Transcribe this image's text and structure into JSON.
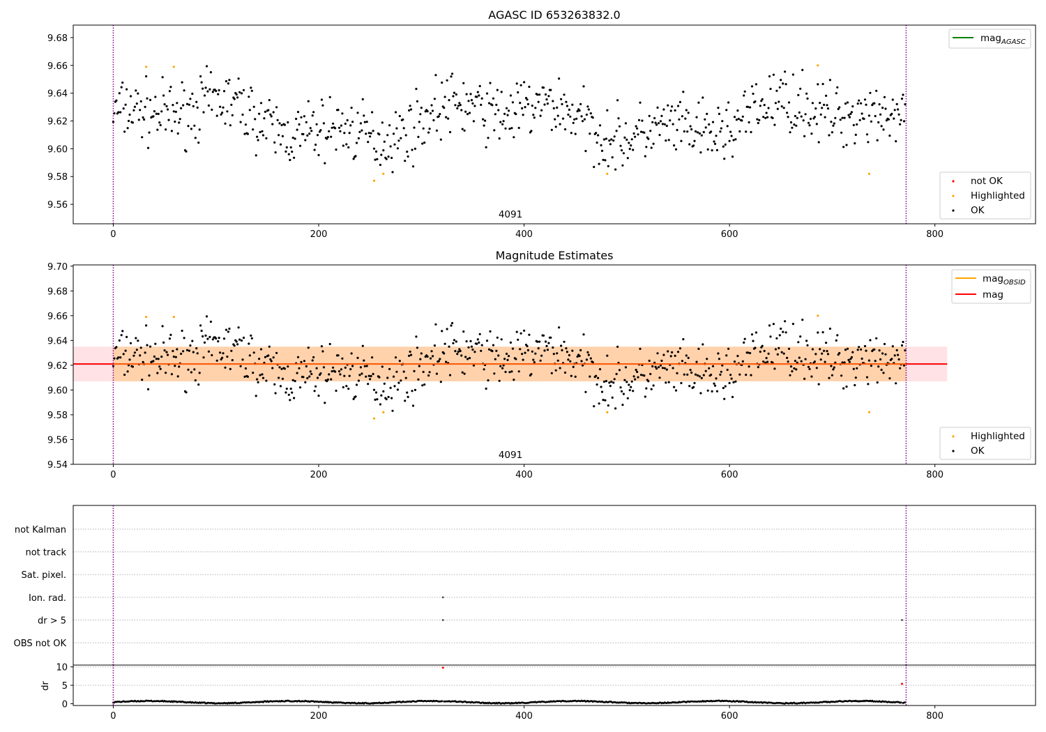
{
  "chart_data": [
    {
      "type": "scatter",
      "title": "AGASC ID 653263832.0",
      "xlim": [
        -39,
        898
      ],
      "ylim": [
        9.546,
        9.689
      ],
      "xticks": [
        0,
        200,
        400,
        600,
        800
      ],
      "yticks": [
        9.56,
        9.58,
        9.6,
        9.62,
        9.64,
        9.66,
        9.68
      ],
      "vlines": [
        0,
        772
      ],
      "annotation": {
        "text": "4091",
        "x": 386,
        "y": 9.55
      },
      "legend_lines": [
        {
          "name": "mag",
          "subscript": "AGASC",
          "color": "#008000"
        }
      ],
      "legend_markers": [
        {
          "name": "not OK",
          "color": "#ff0000"
        },
        {
          "name": "Highlighted",
          "color": "#ffa500"
        },
        {
          "name": "OK",
          "color": "#000000"
        }
      ],
      "highlighted": {
        "x": [
          32,
          59,
          254,
          263,
          481,
          686,
          736
        ],
        "y": [
          9.659,
          9.659,
          9.577,
          9.582,
          9.582,
          9.66,
          9.582
        ]
      },
      "series": [
        {
          "name": "OK",
          "color": "#000000",
          "x": [],
          "y": []
        }
      ]
    },
    {
      "type": "scatter",
      "title": "Magnitude Estimates",
      "xlim": [
        -39,
        898
      ],
      "ylim": [
        9.54,
        9.701
      ],
      "xticks": [
        0,
        200,
        400,
        600,
        800
      ],
      "yticks": [
        9.54,
        9.56,
        9.58,
        9.6,
        9.62,
        9.64,
        9.66,
        9.68,
        9.7
      ],
      "vlines": [
        0,
        772
      ],
      "annotation": {
        "text": "4091",
        "x": 386,
        "y": 9.544
      },
      "mean": 9.621,
      "band": {
        "low": 9.607,
        "high": 9.635,
        "x": [
          -39,
          812
        ]
      },
      "legend_lines": [
        {
          "name": "mag",
          "subscript": "OBSID",
          "color": "#ffa500"
        },
        {
          "name": "mag",
          "subscript": "",
          "color": "#ff0000"
        }
      ],
      "legend_markers": [
        {
          "name": "Highlighted",
          "color": "#ffa500"
        },
        {
          "name": "OK",
          "color": "#000000"
        }
      ],
      "highlighted": {
        "x": [
          32,
          59,
          254,
          263,
          481,
          686,
          736
        ],
        "y": [
          9.659,
          9.659,
          9.577,
          9.582,
          9.582,
          9.66,
          9.582
        ]
      }
    },
    {
      "type": "scatter",
      "title": "",
      "xlim": [
        -39,
        898
      ],
      "categories": [
        "OBS not OK",
        "dr > 5",
        "Ion. rad.",
        "Sat. pixel.",
        "not track",
        "not Kalman"
      ],
      "vlines": [
        0,
        772
      ],
      "flags": [
        {
          "category": "Ion. rad.",
          "x": [
            321
          ]
        },
        {
          "category": "dr > 5",
          "x": [
            321,
            768
          ]
        }
      ]
    },
    {
      "type": "scatter",
      "title": "",
      "ylabel": "dr",
      "xlim": [
        -39,
        898
      ],
      "ylim": [
        -0.5,
        10.5
      ],
      "xticks": [
        0,
        200,
        400,
        600,
        800
      ],
      "yticks": [
        0,
        5,
        10
      ],
      "vlines": [
        0,
        772
      ],
      "not_ok": {
        "x": [
          321,
          768
        ],
        "y": [
          9.8,
          5.4
        ]
      }
    }
  ]
}
